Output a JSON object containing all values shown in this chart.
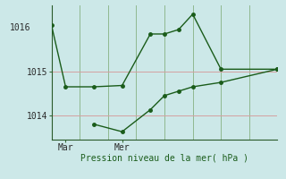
{
  "background_color": "#cce8e8",
  "grid_color_h": "#d4a0a0",
  "grid_color_v": "#90b890",
  "line_color": "#1a5c1a",
  "xlabel": "Pression niveau de la mer( hPa )",
  "xtick_labels": [
    "Mar",
    "Mer"
  ],
  "ylim": [
    1013.45,
    1016.5
  ],
  "yticks": [
    1014,
    1015
  ],
  "ytop_label": "1016",
  "series1_x": [
    0,
    1,
    3,
    5,
    7,
    8,
    9,
    10,
    12,
    16
  ],
  "series1_y": [
    1016.05,
    1014.65,
    1014.65,
    1014.68,
    1015.85,
    1015.85,
    1015.95,
    1016.3,
    1015.05,
    1015.05
  ],
  "series2_x": [
    3,
    5,
    7,
    8,
    9,
    10,
    12,
    16
  ],
  "series2_y": [
    1013.8,
    1013.63,
    1014.13,
    1014.45,
    1014.55,
    1014.65,
    1014.75,
    1015.05
  ],
  "xmin": 0,
  "xmax": 16,
  "x_mar": 1,
  "x_mer": 5,
  "vgrid_positions": [
    0,
    1,
    2,
    3,
    4,
    5,
    6,
    7,
    8,
    9,
    10,
    11,
    12,
    13,
    14,
    15,
    16
  ],
  "marker_size": 2.5,
  "line_width": 1.0
}
